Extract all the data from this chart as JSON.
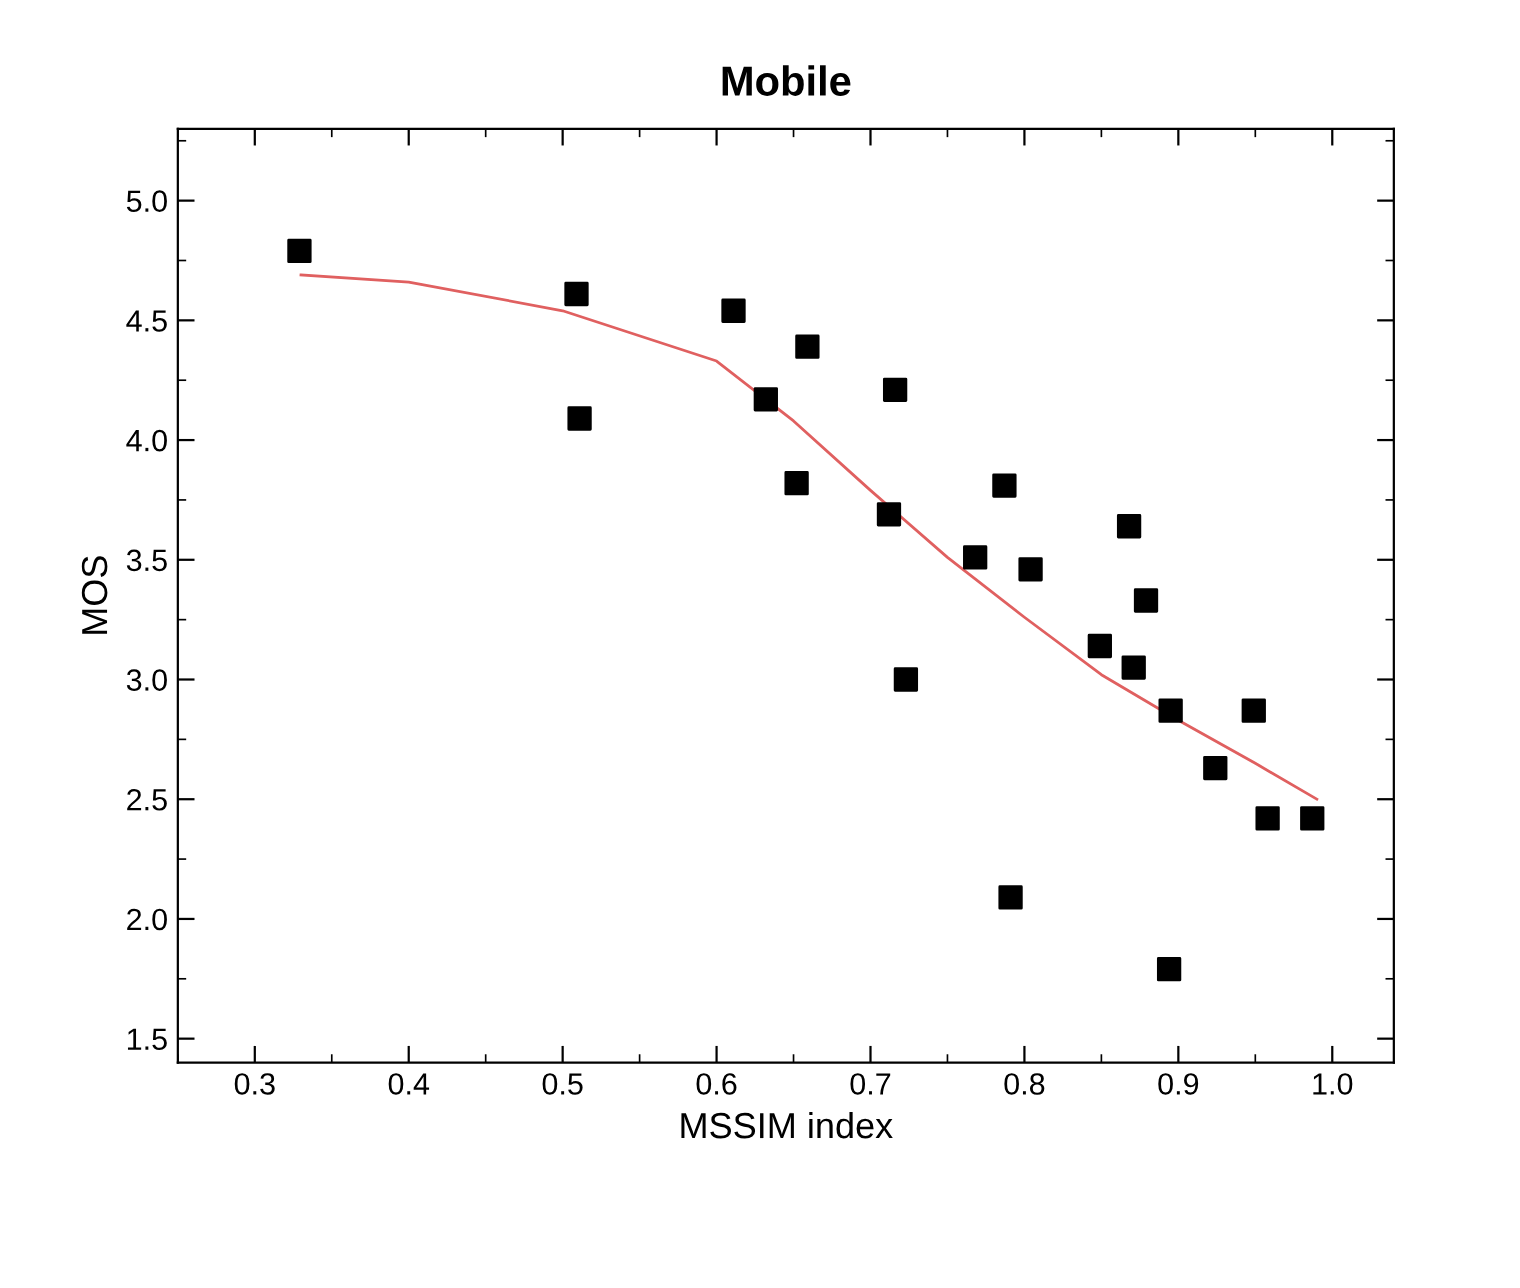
{
  "chart_data": {
    "type": "scatter",
    "title": "Mobile",
    "xlabel": "MSSIM index",
    "ylabel": "MOS",
    "xlim": [
      0.25,
      1.04
    ],
    "ylim": [
      1.4,
      5.3
    ],
    "xticks": [
      {
        "value": 0.3,
        "label": "0.3"
      },
      {
        "value": 0.4,
        "label": "0.4"
      },
      {
        "value": 0.5,
        "label": "0.5"
      },
      {
        "value": 0.6,
        "label": "0.6"
      },
      {
        "value": 0.7,
        "label": "0.7"
      },
      {
        "value": 0.8,
        "label": "0.8"
      },
      {
        "value": 0.9,
        "label": "0.9"
      },
      {
        "value": 1.0,
        "label": "1.0"
      }
    ],
    "yticks": [
      {
        "value": 1.5,
        "label": "1.5"
      },
      {
        "value": 2.0,
        "label": "2.0"
      },
      {
        "value": 2.5,
        "label": "2.5"
      },
      {
        "value": 3.0,
        "label": "3.0"
      },
      {
        "value": 3.5,
        "label": "3.5"
      },
      {
        "value": 4.0,
        "label": "4.0"
      },
      {
        "value": 4.5,
        "label": "4.5"
      },
      {
        "value": 5.0,
        "label": "5.0"
      }
    ],
    "grid": false,
    "series": [
      {
        "color": "#000000",
        "marker": "square",
        "x": [
          0.329,
          0.509,
          0.511,
          0.611,
          0.632,
          0.659,
          0.652,
          0.716,
          0.712,
          0.723,
          0.768,
          0.787,
          0.804,
          0.791,
          0.849,
          0.868,
          0.879,
          0.871,
          0.895,
          0.894,
          0.949,
          0.924,
          0.958,
          0.987
        ],
        "values": [
          4.79,
          4.61,
          4.09,
          4.54,
          4.17,
          4.39,
          3.82,
          4.21,
          3.69,
          3.0,
          3.51,
          3.81,
          3.46,
          2.09,
          3.14,
          3.64,
          3.33,
          3.05,
          2.87,
          1.79,
          2.87,
          2.63,
          2.42,
          2.42
        ]
      },
      {
        "type": "line",
        "color": "#e06060",
        "marker": "none",
        "line_style": "solid",
        "x": [
          0.33,
          0.4,
          0.5,
          0.6,
          0.65,
          0.7,
          0.75,
          0.8,
          0.85,
          0.9,
          0.95,
          0.99
        ],
        "values": [
          4.69,
          4.66,
          4.54,
          4.33,
          4.08,
          3.79,
          3.51,
          3.26,
          3.02,
          2.83,
          2.65,
          2.5
        ]
      }
    ]
  }
}
